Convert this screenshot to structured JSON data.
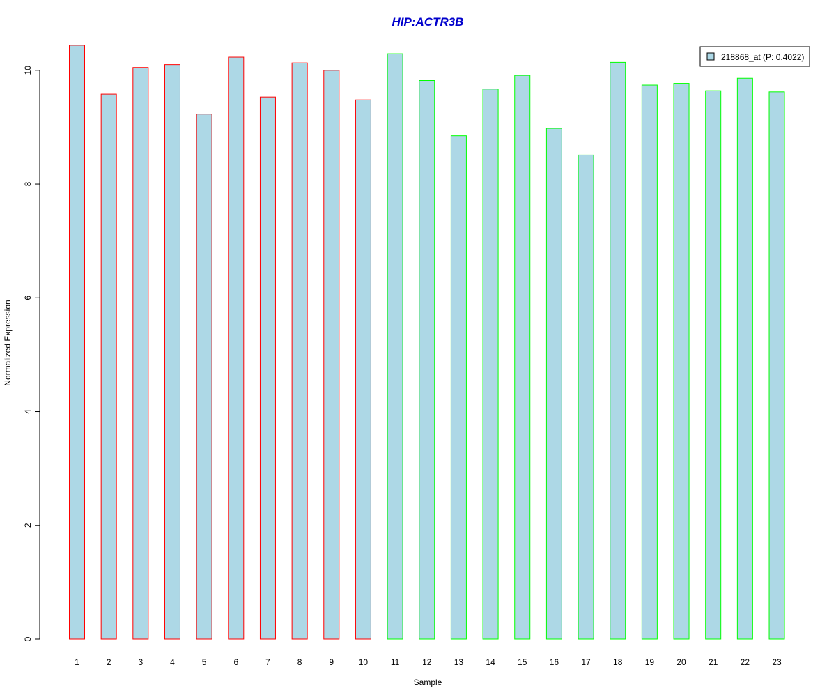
{
  "chart_data": {
    "type": "bar",
    "title": "HIP:ACTR3B",
    "xlabel": "Sample",
    "ylabel": "Normalized Expression",
    "ylim": [
      0,
      10.5
    ],
    "yticks": [
      "0",
      "2",
      "4",
      "6",
      "8",
      "10"
    ],
    "categories": [
      "1",
      "2",
      "3",
      "4",
      "5",
      "6",
      "7",
      "8",
      "9",
      "10",
      "11",
      "12",
      "13",
      "14",
      "15",
      "16",
      "17",
      "18",
      "19",
      "20",
      "21",
      "22",
      "23"
    ],
    "series": [
      {
        "name": "218868_at (P: 0.4022)",
        "values": [
          10.44,
          9.58,
          10.05,
          10.1,
          9.23,
          10.23,
          9.53,
          10.13,
          10.0,
          9.48,
          10.29,
          9.82,
          8.85,
          9.67,
          9.91,
          8.98,
          8.51,
          10.14,
          9.74,
          9.77,
          9.64,
          9.86,
          9.62
        ]
      }
    ],
    "bar_fill": "#add8e6",
    "group_border_colors": [
      "#ff0000",
      "#ff0000",
      "#ff0000",
      "#ff0000",
      "#ff0000",
      "#ff0000",
      "#ff0000",
      "#ff0000",
      "#ff0000",
      "#ff0000",
      "#00ff00",
      "#00ff00",
      "#00ff00",
      "#00ff00",
      "#00ff00",
      "#00ff00",
      "#00ff00",
      "#00ff00",
      "#00ff00",
      "#00ff00",
      "#00ff00",
      "#00ff00",
      "#00ff00"
    ],
    "title_color": "#0000cc",
    "legend_position": "top-right",
    "grid": false
  }
}
